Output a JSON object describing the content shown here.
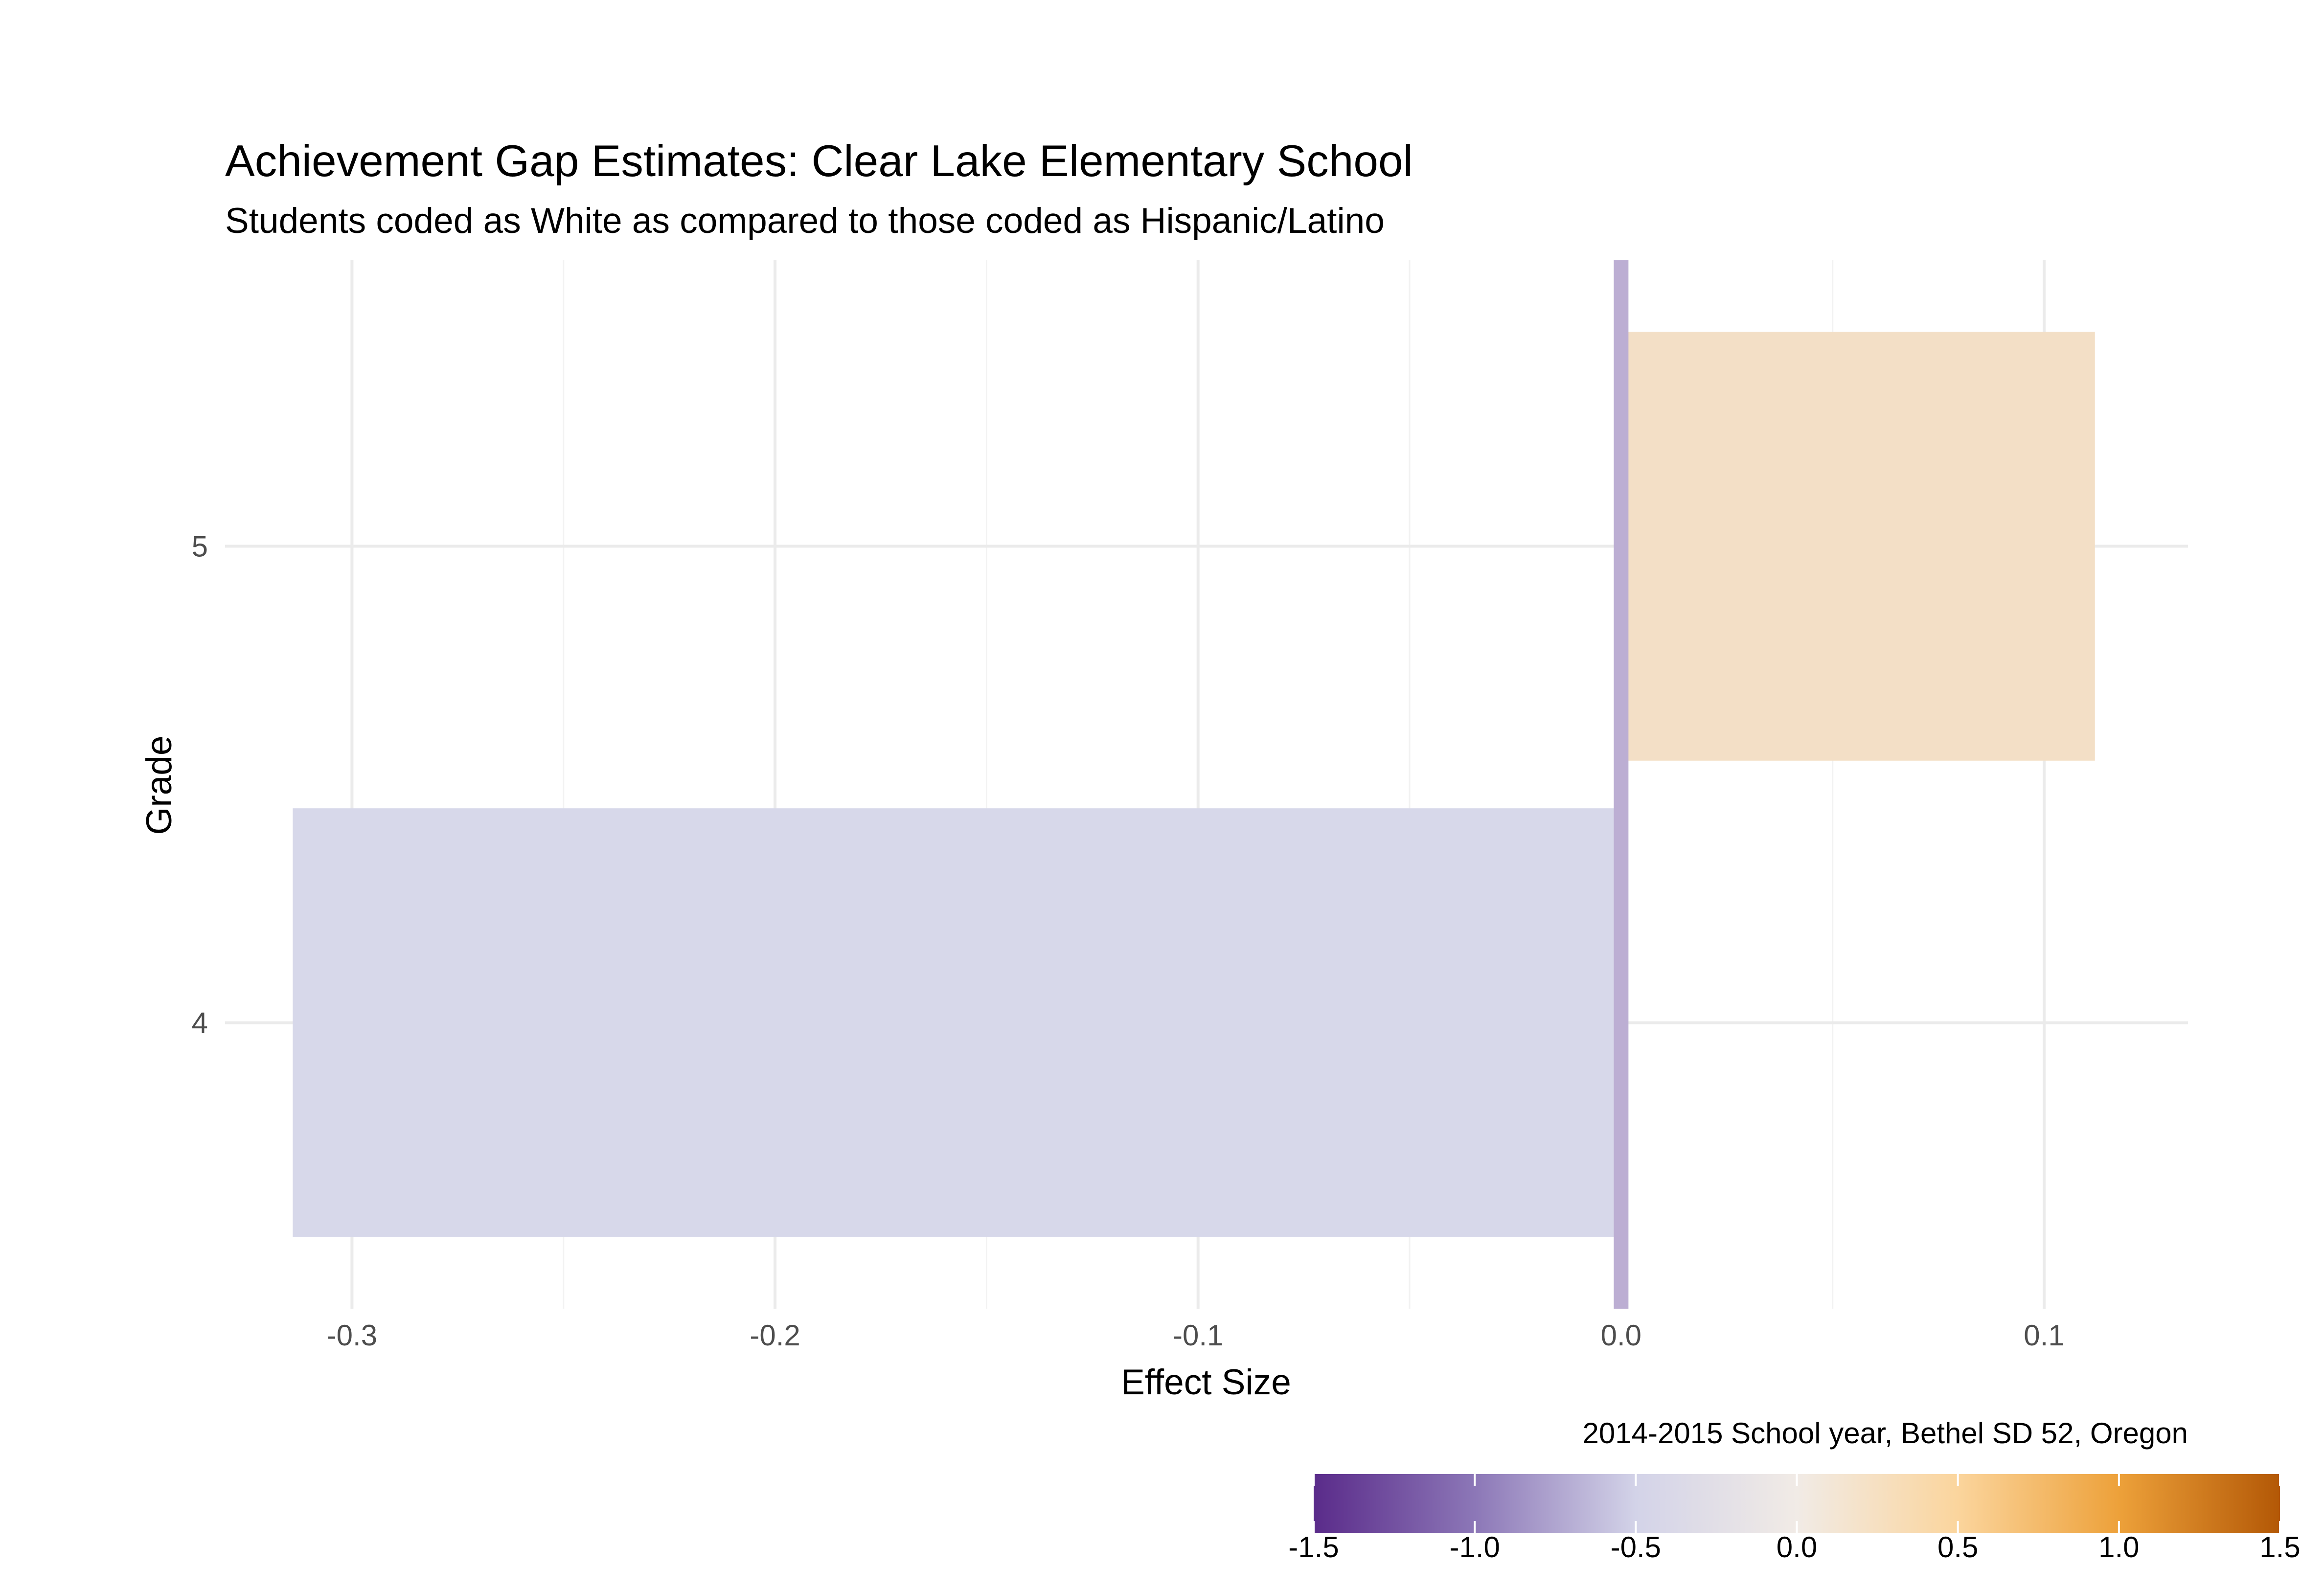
{
  "chart_data": {
    "type": "bar",
    "orientation": "horizontal",
    "title": "Achievement Gap Estimates: Clear Lake Elementary School",
    "subtitle": "Students coded as White as compared to those coded as Hispanic/Latino",
    "xlabel": "Effect Size",
    "ylabel": "Grade",
    "caption": "2014-2015 School year, Bethel SD 52, Oregon",
    "categories": [
      "4",
      "5"
    ],
    "values": [
      -0.314,
      0.112
    ],
    "xlim": [
      -0.33,
      0.134
    ],
    "x_ticks": [
      -0.3,
      -0.2,
      -0.1,
      0.0,
      0.1
    ],
    "x_tick_labels": [
      "-0.3",
      "-0.2",
      "-0.1",
      "0.0",
      "0.1"
    ],
    "reference_line": 0,
    "reference_line_color": "#bcaed3",
    "grid": true,
    "legend": {
      "type": "colorbar",
      "placement": "bottom-right",
      "range": [
        -1.5,
        1.5
      ],
      "ticks": [
        -1.5,
        -1.0,
        -0.5,
        0.0,
        0.5,
        1.0,
        1.5
      ],
      "tick_labels": [
        "-1.5",
        "-1.0",
        "-0.5",
        "0.0",
        "0.5",
        "1.0",
        "1.5"
      ],
      "colors": [
        "#5a2b8a",
        "#8c77b7",
        "#d3d3e8",
        "#f1ebe6",
        "#fbd59d",
        "#eda13a",
        "#b35806"
      ]
    },
    "bar_colors": [
      "#d7d8ea",
      "#f3dfc6"
    ]
  }
}
